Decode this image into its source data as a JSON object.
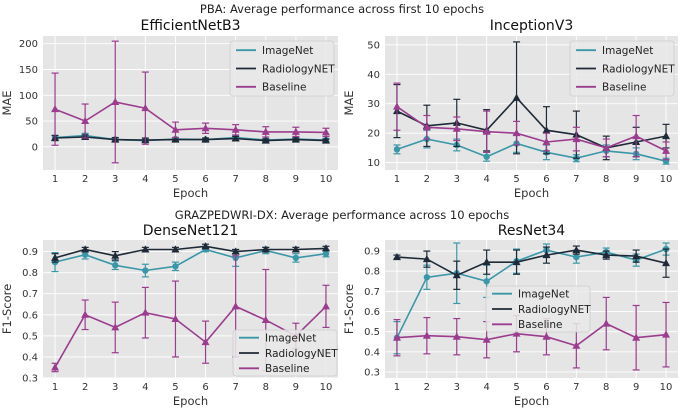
{
  "suptitle_top": "PBA: Average performance across first 10 epochs",
  "suptitle_bottom": "GRAZPEDWRI-DX: Average performance across 10 epochs",
  "colors": {
    "ImageNet": "#3a97a8",
    "RadiologyNET": "#1e2a38",
    "Baseline": "#9b3c8f",
    "axes_bg": "#e5e5e5",
    "grid": "#ffffff"
  },
  "chart_data": [
    {
      "type": "line",
      "title": "EfficientNetB3",
      "xlabel": "Epoch",
      "ylabel": "MAE",
      "x": [
        1,
        2,
        3,
        4,
        5,
        6,
        7,
        8,
        9,
        10
      ],
      "xlim": [
        0.6,
        10.4
      ],
      "ylim": [
        -45,
        215
      ],
      "yticks": [
        0,
        50,
        100,
        150,
        200
      ],
      "xticks": [
        1,
        2,
        3,
        4,
        5,
        6,
        7,
        8,
        9,
        10
      ],
      "grid": true,
      "legend": "top-right",
      "series": [
        {
          "name": "ImageNet",
          "marker": "o",
          "values": [
            18,
            22,
            14,
            12,
            15,
            14,
            18,
            13,
            15,
            13
          ],
          "err": [
            4,
            4,
            3,
            3,
            3,
            3,
            3,
            3,
            3,
            3
          ]
        },
        {
          "name": "RadiologyNET",
          "marker": "^",
          "values": [
            17,
            19,
            14,
            13,
            14,
            14,
            16,
            12,
            14,
            12
          ],
          "err": [
            5,
            4,
            4,
            4,
            4,
            3,
            4,
            3,
            3,
            3
          ]
        },
        {
          "name": "Baseline",
          "marker": "^",
          "values": [
            73,
            50,
            87,
            75,
            33,
            36,
            33,
            29,
            29,
            28
          ],
          "err": [
            70,
            33,
            118,
            70,
            15,
            10,
            10,
            10,
            9,
            8
          ]
        }
      ]
    },
    {
      "type": "line",
      "title": "InceptionV3",
      "xlabel": "Epoch",
      "ylabel": "MAE",
      "x": [
        1,
        2,
        3,
        4,
        5,
        6,
        7,
        8,
        9,
        10
      ],
      "xlim": [
        0.6,
        10.4
      ],
      "ylim": [
        7.5,
        53
      ],
      "yticks": [
        10,
        20,
        30,
        40,
        50
      ],
      "xticks": [
        1,
        2,
        3,
        4,
        5,
        6,
        7,
        8,
        9,
        10
      ],
      "grid": true,
      "legend": "top-right",
      "series": [
        {
          "name": "ImageNet",
          "marker": "o",
          "values": [
            14.5,
            18,
            16,
            12,
            16.5,
            13.5,
            11.5,
            14,
            13,
            10.5
          ],
          "err": [
            1.5,
            3,
            2,
            1.5,
            3,
            2.5,
            1.2,
            2,
            2,
            1
          ]
        },
        {
          "name": "RadiologyNET",
          "marker": "^",
          "values": [
            27.5,
            22.5,
            23.5,
            21,
            32,
            21,
            19.5,
            15,
            17,
            19
          ],
          "err": [
            9,
            7,
            8,
            7,
            19,
            8,
            8,
            4,
            5,
            4
          ]
        },
        {
          "name": "Baseline",
          "marker": "^",
          "values": [
            29,
            22,
            21.5,
            20.5,
            20,
            17,
            18,
            15,
            19,
            14
          ],
          "err": [
            8,
            4,
            4,
            7,
            4,
            3,
            4,
            3,
            7,
            3
          ]
        }
      ]
    },
    {
      "type": "line",
      "title": "DenseNet121",
      "xlabel": "Epoch",
      "ylabel": "F1-Score",
      "x": [
        1,
        2,
        3,
        4,
        5,
        6,
        7,
        8,
        9,
        10
      ],
      "xlim": [
        0.6,
        10.4
      ],
      "ylim": [
        0.3,
        0.955
      ],
      "yticks": [
        0.3,
        0.4,
        0.5,
        0.6,
        0.7,
        0.8,
        0.9
      ],
      "xticks": [
        1,
        2,
        3,
        4,
        5,
        6,
        7,
        8,
        9,
        10
      ],
      "grid": true,
      "legend": "bottom-right",
      "series": [
        {
          "name": "ImageNet",
          "marker": "o",
          "values": [
            0.85,
            0.885,
            0.835,
            0.81,
            0.83,
            0.91,
            0.87,
            0.905,
            0.87,
            0.89
          ],
          "err": [
            0.045,
            0.02,
            0.02,
            0.03,
            0.02,
            0.01,
            0.04,
            0.015,
            0.02,
            0.015
          ]
        },
        {
          "name": "RadiologyNET",
          "marker": "^",
          "values": [
            0.87,
            0.91,
            0.88,
            0.91,
            0.91,
            0.925,
            0.9,
            0.91,
            0.91,
            0.915
          ],
          "err": [
            0.02,
            0.01,
            0.02,
            0.01,
            0.01,
            0.01,
            0.01,
            0.01,
            0.01,
            0.01
          ]
        },
        {
          "name": "Baseline",
          "marker": "^",
          "values": [
            0.35,
            0.6,
            0.54,
            0.61,
            0.58,
            0.47,
            0.64,
            0.575,
            0.5,
            0.64
          ],
          "err": [
            0.02,
            0.07,
            0.12,
            0.12,
            0.18,
            0.1,
            0.24,
            0.24,
            0.06,
            0.1
          ]
        }
      ]
    },
    {
      "type": "line",
      "title": "ResNet34",
      "xlabel": "Epoch",
      "ylabel": "F1-Score",
      "x": [
        1,
        2,
        3,
        4,
        5,
        6,
        7,
        8,
        9,
        10
      ],
      "xlim": [
        0.6,
        10.4
      ],
      "ylim": [
        0.27,
        0.955
      ],
      "yticks": [
        0.3,
        0.4,
        0.5,
        0.6,
        0.7,
        0.8,
        0.9
      ],
      "xticks": [
        1,
        2,
        3,
        4,
        5,
        6,
        7,
        8,
        9,
        10
      ],
      "grid": true,
      "legend": "center",
      "series": [
        {
          "name": "ImageNet",
          "marker": "o",
          "values": [
            0.47,
            0.77,
            0.79,
            0.75,
            0.85,
            0.905,
            0.87,
            0.895,
            0.855,
            0.91
          ],
          "err": [
            0.08,
            0.06,
            0.15,
            0.08,
            0.06,
            0.03,
            0.03,
            0.02,
            0.03,
            0.03
          ]
        },
        {
          "name": "RadiologyNET",
          "marker": "^",
          "values": [
            0.87,
            0.86,
            0.78,
            0.845,
            0.845,
            0.88,
            0.905,
            0.88,
            0.875,
            0.84
          ],
          "err": [
            0.01,
            0.04,
            0.07,
            0.06,
            0.06,
            0.04,
            0.02,
            0.02,
            0.03,
            0.07
          ]
        },
        {
          "name": "Baseline",
          "marker": "^",
          "values": [
            0.47,
            0.48,
            0.475,
            0.46,
            0.49,
            0.475,
            0.43,
            0.54,
            0.47,
            0.485
          ],
          "err": [
            0.09,
            0.09,
            0.09,
            0.09,
            0.09,
            0.09,
            0.11,
            0.13,
            0.16,
            0.16
          ]
        }
      ]
    }
  ]
}
